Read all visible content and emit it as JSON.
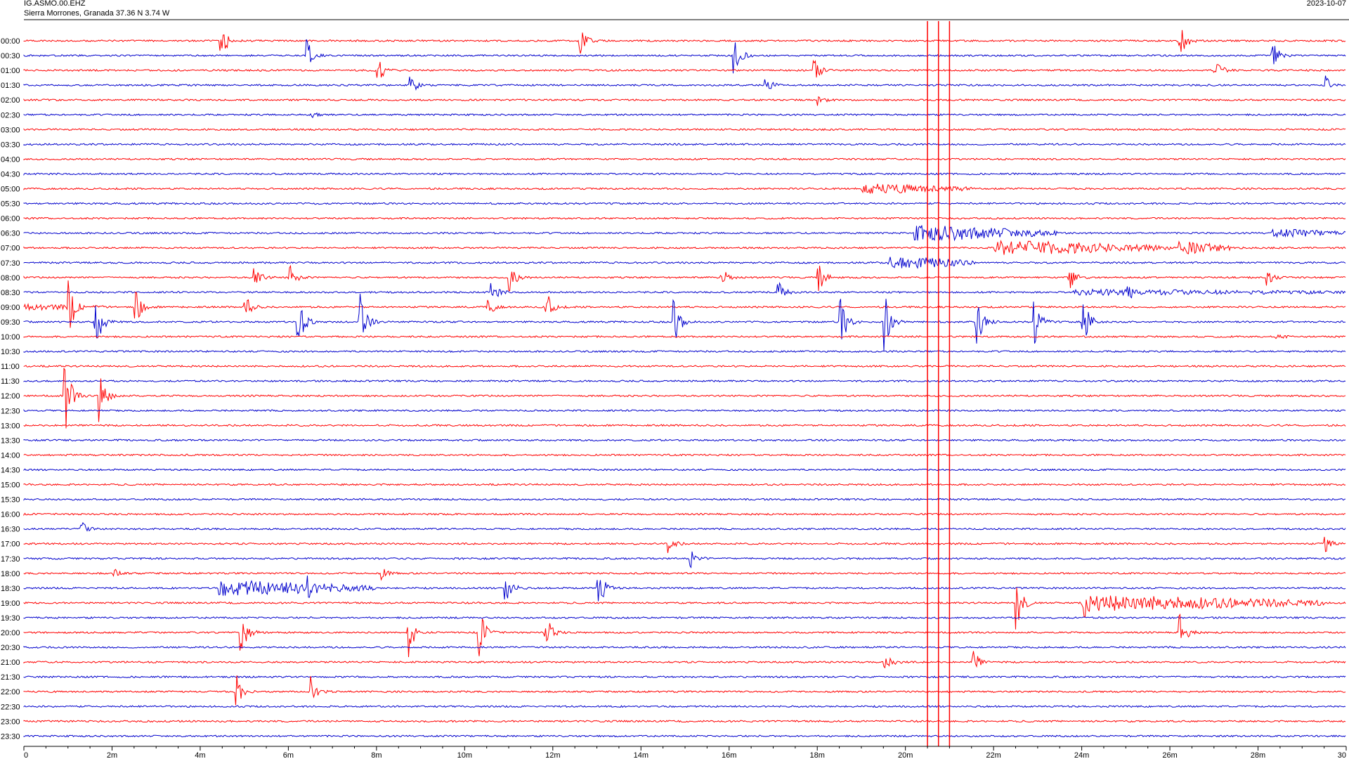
{
  "header": {
    "station": "IG.ASMO.00.EHZ",
    "location": "Sierra Morrones, Granada  37.36 N 3.74 W",
    "date": "2023-10-07"
  },
  "colors": {
    "a": "#ff0000",
    "b": "#0000cc",
    "axis": "#000000"
  },
  "chart_data": {
    "type": "line",
    "title": "",
    "xlabel": "",
    "ylabel": "",
    "xlim": [
      0,
      30
    ],
    "x_ticks": [
      "0",
      "2m",
      "4m",
      "6m",
      "8m",
      "10m",
      "12m",
      "14m",
      "16m",
      "18m",
      "20m",
      "22m",
      "24m",
      "26m",
      "28m",
      "30"
    ],
    "rows": [
      "00:00",
      "00:30",
      "01:00",
      "01:30",
      "02:00",
      "02:30",
      "03:00",
      "03:30",
      "04:00",
      "04:30",
      "05:00",
      "05:30",
      "06:00",
      "06:30",
      "07:00",
      "07:30",
      "08:00",
      "08:30",
      "09:00",
      "09:30",
      "10:00",
      "10:30",
      "11:00",
      "11:30",
      "12:00",
      "12:30",
      "13:00",
      "13:30",
      "14:00",
      "14:30",
      "15:00",
      "15:30",
      "16:00",
      "16:30",
      "17:00",
      "17:30",
      "18:00",
      "18:30",
      "19:00",
      "19:30",
      "20:00",
      "20:30",
      "21:00",
      "21:30",
      "22:00",
      "22:30",
      "23:00",
      "23:30"
    ],
    "events": [
      {
        "row": 0,
        "t": 4.45,
        "amp": 30
      },
      {
        "row": 0,
        "t": 12.6,
        "amp": 25
      },
      {
        "row": 0,
        "t": 26.2,
        "amp": 30
      },
      {
        "row": 1,
        "t": 6.4,
        "amp": 22
      },
      {
        "row": 1,
        "t": 16.1,
        "amp": 28
      },
      {
        "row": 1,
        "t": 28.3,
        "amp": 22
      },
      {
        "row": 2,
        "t": 8.0,
        "amp": 20
      },
      {
        "row": 2,
        "t": 17.9,
        "amp": 20
      },
      {
        "row": 2,
        "t": 27.0,
        "amp": 18
      },
      {
        "row": 3,
        "t": 8.75,
        "amp": 14
      },
      {
        "row": 3,
        "t": 16.8,
        "amp": 14
      },
      {
        "row": 3,
        "t": 29.5,
        "amp": 14
      },
      {
        "row": 4,
        "t": 18.0,
        "amp": 8
      },
      {
        "row": 5,
        "t": 6.5,
        "amp": 4
      },
      {
        "row": 10,
        "t": 19.0,
        "amp": 6
      },
      {
        "row": 16,
        "t": 5.2,
        "amp": 20
      },
      {
        "row": 16,
        "t": 6.0,
        "amp": 20
      },
      {
        "row": 16,
        "t": 11.0,
        "amp": 22
      },
      {
        "row": 16,
        "t": 15.8,
        "amp": 15
      },
      {
        "row": 16,
        "t": 18.0,
        "amp": 22
      },
      {
        "row": 16,
        "t": 23.7,
        "amp": 24
      },
      {
        "row": 16,
        "t": 28.2,
        "amp": 14
      },
      {
        "row": 17,
        "t": 10.6,
        "amp": 16
      },
      {
        "row": 17,
        "t": 17.1,
        "amp": 14
      },
      {
        "row": 17,
        "t": 25.0,
        "amp": 22
      },
      {
        "row": 18,
        "t": 1.0,
        "amp": 40
      },
      {
        "row": 18,
        "t": 2.5,
        "amp": 28
      },
      {
        "row": 18,
        "t": 5.0,
        "amp": 16
      },
      {
        "row": 18,
        "t": 10.5,
        "amp": 15
      },
      {
        "row": 18,
        "t": 11.8,
        "amp": 30
      },
      {
        "row": 19,
        "t": 1.6,
        "amp": 45
      },
      {
        "row": 19,
        "t": 6.2,
        "amp": 40
      },
      {
        "row": 19,
        "t": 7.6,
        "amp": 40
      },
      {
        "row": 19,
        "t": 14.7,
        "amp": 45
      },
      {
        "row": 19,
        "t": 18.5,
        "amp": 40
      },
      {
        "row": 19,
        "t": 19.5,
        "amp": 45
      },
      {
        "row": 19,
        "t": 21.6,
        "amp": 40
      },
      {
        "row": 19,
        "t": 22.9,
        "amp": 35
      },
      {
        "row": 19,
        "t": 24.0,
        "amp": 40
      },
      {
        "row": 20,
        "t": 28.4,
        "amp": 5
      },
      {
        "row": 24,
        "t": 0.9,
        "amp": 60
      },
      {
        "row": 24,
        "t": 1.7,
        "amp": 50
      },
      {
        "row": 33,
        "t": 1.3,
        "amp": 10
      },
      {
        "row": 34,
        "t": 14.6,
        "amp": 12
      },
      {
        "row": 34,
        "t": 29.5,
        "amp": 12
      },
      {
        "row": 35,
        "t": 15.1,
        "amp": 12
      },
      {
        "row": 36,
        "t": 2.0,
        "amp": 8
      },
      {
        "row": 36,
        "t": 8.1,
        "amp": 8
      },
      {
        "row": 37,
        "t": 6.4,
        "amp": 30
      },
      {
        "row": 37,
        "t": 10.9,
        "amp": 30
      },
      {
        "row": 37,
        "t": 13.0,
        "amp": 35
      },
      {
        "row": 38,
        "t": 22.5,
        "amp": 40
      },
      {
        "row": 38,
        "t": 24.0,
        "amp": 40
      },
      {
        "row": 40,
        "t": 4.9,
        "amp": 35
      },
      {
        "row": 40,
        "t": 8.7,
        "amp": 35
      },
      {
        "row": 40,
        "t": 10.3,
        "amp": 35
      },
      {
        "row": 40,
        "t": 11.8,
        "amp": 30
      },
      {
        "row": 40,
        "t": 26.2,
        "amp": 30
      },
      {
        "row": 42,
        "t": 19.5,
        "amp": 20
      },
      {
        "row": 42,
        "t": 21.5,
        "amp": 20
      },
      {
        "row": 44,
        "t": 4.8,
        "amp": 22
      },
      {
        "row": 44,
        "t": 6.5,
        "amp": 22
      }
    ],
    "tremors": [
      {
        "row": 10,
        "t0": 19.0,
        "t1": 21.5,
        "amp": 6
      },
      {
        "row": 13,
        "t0": 20.2,
        "t1": 23.5,
        "amp": 10
      },
      {
        "row": 13,
        "t0": 28.3,
        "t1": 30.0,
        "amp": 5
      },
      {
        "row": 14,
        "t0": 22.0,
        "t1": 26.0,
        "amp": 9
      },
      {
        "row": 14,
        "t0": 26.2,
        "t1": 27.4,
        "amp": 8
      },
      {
        "row": 15,
        "t0": 19.6,
        "t1": 21.6,
        "amp": 8
      },
      {
        "row": 17,
        "t0": 23.8,
        "t1": 30.0,
        "amp": 3
      },
      {
        "row": 18,
        "t0": 0.0,
        "t1": 1.8,
        "amp": 3
      },
      {
        "row": 37,
        "t0": 4.4,
        "t1": 8.0,
        "amp": 10
      },
      {
        "row": 38,
        "t0": 24.3,
        "t1": 29.5,
        "amp": 10
      }
    ],
    "markers": [
      20.5,
      20.75,
      21.0
    ]
  }
}
